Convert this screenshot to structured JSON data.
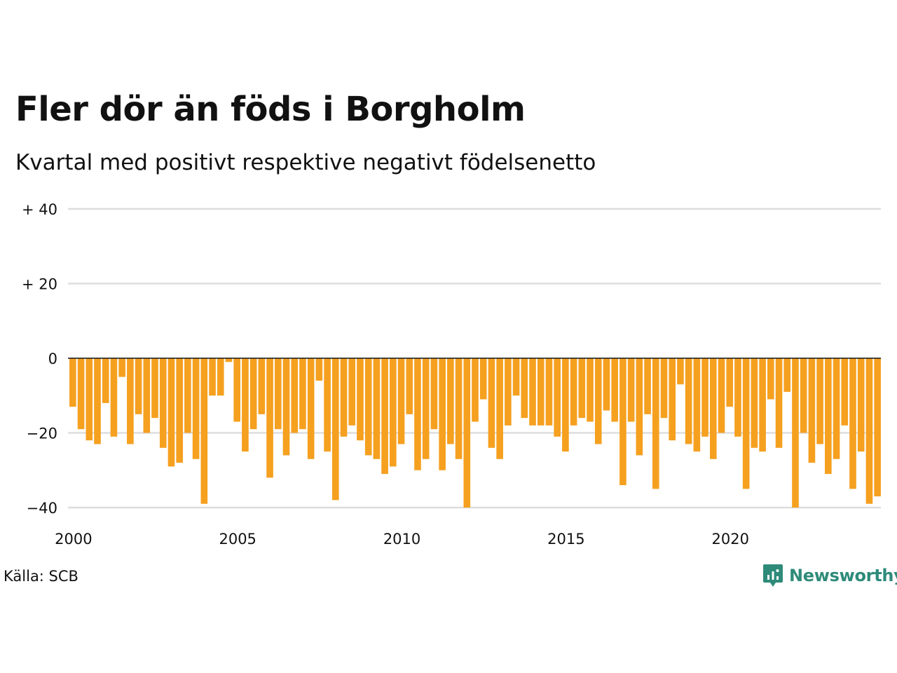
{
  "header": {
    "title": "Fler dör än föds i Borgholm",
    "subtitle": "Kvartal med positivt respektive negativt födelsenetto"
  },
  "footer": {
    "source": "Källa: SCB",
    "brand": "Newsworthy"
  },
  "colors": {
    "bar_negative": "#f5a01f",
    "grid": "#dddddd",
    "zero_line": "#111111",
    "brand": "#2e8b7a"
  },
  "icons": {
    "brand_logo": "newsworthy-logo-icon"
  },
  "chart_data": {
    "type": "bar",
    "title": "Fler dör än föds i Borgholm",
    "subtitle": "Kvartal med positivt respektive negativt födelsenetto",
    "xlabel": "",
    "ylabel": "",
    "ylim": [
      -40,
      40
    ],
    "y_ticks": [
      40,
      20,
      0,
      -20,
      -40
    ],
    "y_tick_labels": [
      "+ 40",
      "+ 20",
      "0",
      "−20",
      "−40"
    ],
    "x_ticks": [
      2000,
      2005,
      2010,
      2015,
      2020
    ],
    "x_tick_labels": [
      "2000",
      "2005",
      "2010",
      "2015",
      "2020"
    ],
    "grid": true,
    "legend": "none",
    "start_year": 2000,
    "periods_per_year": 4,
    "series": [
      {
        "values": [
          -13,
          -19,
          -22,
          -23,
          -12,
          -21,
          -5,
          -23,
          -15,
          -20,
          -16,
          -24,
          -29,
          -28,
          -20,
          -27,
          -39,
          -10,
          -10,
          -1,
          -17,
          -25,
          -19,
          -15,
          -32,
          -19,
          -26,
          -20,
          -19,
          -27,
          -6,
          -25,
          -38,
          -21,
          -18,
          -22,
          -26,
          -27,
          -31,
          -29,
          -23,
          -15,
          -30,
          -27,
          -19,
          -30,
          -23,
          -27,
          -40,
          -17,
          -11,
          -24,
          -27,
          -18,
          -10,
          -16,
          -18,
          -18,
          -18,
          -21,
          -25,
          -18,
          -16,
          -17,
          -23,
          -14,
          -17,
          -34,
          -17,
          -26,
          -15,
          -35,
          -16,
          -22,
          -7,
          -23,
          -25,
          -21,
          -27,
          -20,
          -13,
          -21,
          -35,
          -24,
          -25,
          -11,
          -24,
          -9,
          -40,
          -20,
          -28,
          -23,
          -31,
          -27,
          -18,
          -35,
          -25,
          -39,
          -37
        ]
      }
    ]
  }
}
